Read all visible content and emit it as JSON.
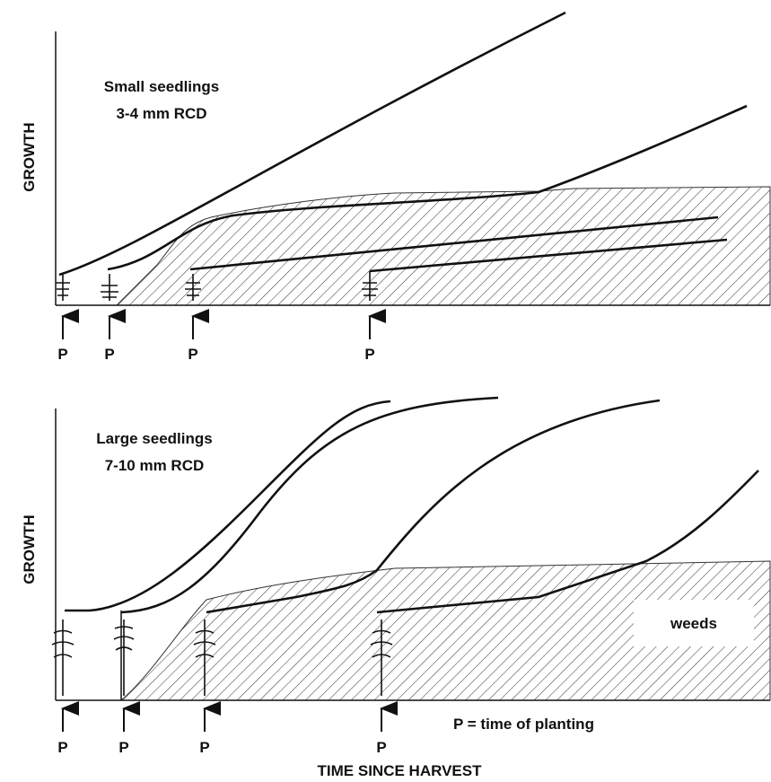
{
  "panels": [
    {
      "title": "Small seedlings",
      "subtitle": "3-4 mm RCD",
      "y_label": "GROWTH",
      "planting_labels": [
        "P",
        "P",
        "P",
        "P"
      ]
    },
    {
      "title": "Large seedlings",
      "subtitle": "7-10 mm RCD",
      "y_label": "GROWTH",
      "planting_labels": [
        "P",
        "P",
        "P",
        "P"
      ],
      "weeds_label": "weeds"
    }
  ],
  "legend": "P = time of planting",
  "x_label": "TIME SINCE HARVEST"
}
